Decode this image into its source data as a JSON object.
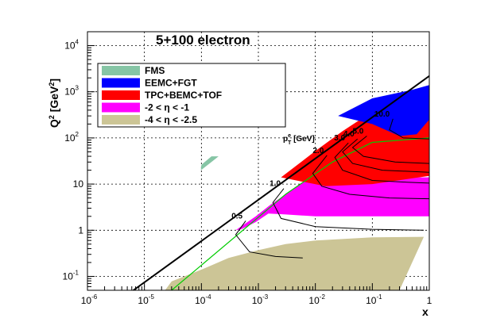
{
  "chart_data": {
    "type": "area",
    "title": "5+100 electron",
    "xlabel": "x",
    "ylabel": "Q2 [GeV2]",
    "x_scale": "log",
    "y_scale": "log",
    "xlim": [
      1e-06,
      1
    ],
    "ylim": [
      0.05,
      20000
    ],
    "grid": true,
    "x_ticks": [
      {
        "base": "10",
        "exp": "-6"
      },
      {
        "base": "10",
        "exp": "-5"
      },
      {
        "base": "10",
        "exp": "-4"
      },
      {
        "base": "10",
        "exp": "-3"
      },
      {
        "base": "10",
        "exp": "-2"
      },
      {
        "base": "10",
        "exp": "-1"
      },
      {
        "base": "1",
        "exp": ""
      }
    ],
    "y_ticks": [
      {
        "base": "10",
        "exp": "-1"
      },
      {
        "base": "1",
        "exp": ""
      },
      {
        "base": "10",
        "exp": ""
      },
      {
        "base": "10",
        "exp": "2"
      },
      {
        "base": "10",
        "exp": "3"
      },
      {
        "base": "10",
        "exp": "4"
      }
    ],
    "legend_position": "top-left",
    "series": [
      {
        "name": "FMS",
        "color": "#86c5a5",
        "polygon": [
          [
            9.8e-05,
            20
          ],
          [
            0.00015,
            30
          ],
          [
            0.0002,
            40
          ],
          [
            0.00015,
            40
          ],
          [
            0.0001,
            26
          ]
        ]
      },
      {
        "name": "EEMC+FGT",
        "color": "#0000ff",
        "polygon": [
          [
            0.025,
            300
          ],
          [
            0.1,
            720
          ],
          [
            0.5,
            1100
          ],
          [
            1,
            1400
          ],
          [
            1,
            250
          ],
          [
            0.6,
            120
          ],
          [
            0.3,
            110
          ],
          [
            0.1,
            200
          ]
        ]
      },
      {
        "name": "TPC+BEMC+TOF",
        "color": "#ff0000",
        "polygon": [
          [
            0.0025,
            14
          ],
          [
            0.01,
            52
          ],
          [
            0.03,
            140
          ],
          [
            0.1,
            370
          ],
          [
            0.5,
            550
          ],
          [
            1,
            580
          ],
          [
            1,
            15
          ],
          [
            0.1,
            10
          ],
          [
            0.015,
            9
          ]
        ]
      },
      {
        "name": "-2 < η < -1",
        "color": "#ff00ff",
        "polygon": [
          [
            0.0004,
            1.0
          ],
          [
            0.0009,
            2.0
          ],
          [
            0.0016,
            3.5
          ],
          [
            0.003,
            6
          ],
          [
            0.006,
            11
          ],
          [
            0.01,
            14
          ],
          [
            0.03,
            14
          ],
          [
            0.1,
            14
          ],
          [
            0.5,
            14
          ],
          [
            1,
            14
          ],
          [
            1,
            2
          ],
          [
            0.1,
            2
          ],
          [
            0.01,
            2
          ],
          [
            0.003,
            2.2
          ],
          [
            0.0015,
            2.3
          ],
          [
            0.0009,
            1.5
          ],
          [
            0.0005,
            1.05
          ]
        ]
      },
      {
        "name": "-4 < η < -2.5",
        "color": "#ccc596",
        "polygon": [
          [
            2.3e-05,
            0.05
          ],
          [
            3e-05,
            0.078
          ],
          [
            0.0001,
            0.14
          ],
          [
            0.0003,
            0.25
          ],
          [
            0.001,
            0.37
          ],
          [
            0.003,
            0.5
          ],
          [
            0.01,
            0.6
          ],
          [
            0.1,
            0.7
          ],
          [
            0.8,
            0.72
          ],
          [
            0.3,
            0.05
          ]
        ]
      }
    ],
    "kinematic_limit": {
      "color": "#000000",
      "points": [
        [
          1e-06,
          0.0095
        ],
        [
          1,
          2200
        ]
      ]
    },
    "y_inelasticity_line": {
      "color": "#00cc00",
      "points": [
        [
          3e-05,
          0.05
        ],
        [
          0.003,
          6
        ],
        [
          0.02,
          30
        ],
        [
          0.1,
          80
        ],
        [
          1,
          100
        ]
      ]
    },
    "pt_axis_label": {
      "base": "p",
      "sup": "e",
      "sub": "T",
      "unit": " [GeV]"
    },
    "pt_curves": [
      {
        "label": "0.5",
        "points": [
          [
            0.0006,
            1.6
          ],
          [
            0.0004,
            0.8
          ],
          [
            0.0007,
            0.34
          ],
          [
            0.002,
            0.27
          ],
          [
            0.006,
            0.25
          ]
        ]
      },
      {
        "label": "1.0",
        "points": [
          [
            0.0028,
            8
          ],
          [
            0.0018,
            4
          ],
          [
            0.0025,
            1.8
          ],
          [
            0.01,
            1.2
          ],
          [
            0.1,
            1.05
          ],
          [
            0.8,
            1.0
          ]
        ]
      },
      {
        "label": "2.0",
        "points": [
          [
            0.016,
            42
          ],
          [
            0.009,
            17
          ],
          [
            0.013,
            9
          ],
          [
            0.04,
            6
          ],
          [
            0.2,
            5
          ],
          [
            1,
            4.8
          ]
        ]
      },
      {
        "label": "3.0",
        "points": [
          [
            0.038,
            78
          ],
          [
            0.022,
            38
          ],
          [
            0.03,
            20
          ],
          [
            0.1,
            12
          ],
          [
            0.4,
            11
          ],
          [
            1,
            10.5
          ]
        ]
      },
      {
        "label": "4.0",
        "points": [
          [
            0.055,
            95
          ],
          [
            0.03,
            50
          ],
          [
            0.045,
            28
          ],
          [
            0.15,
            20
          ],
          [
            1,
            18
          ]
        ]
      },
      {
        "label": "5.0",
        "points": [
          [
            0.08,
            110
          ],
          [
            0.045,
            62
          ],
          [
            0.07,
            40
          ],
          [
            0.25,
            30
          ],
          [
            1,
            28
          ]
        ]
      },
      {
        "label": "10.0",
        "points": [
          [
            0.23,
            260
          ],
          [
            0.2,
            150
          ],
          [
            0.35,
            100
          ],
          [
            1,
            95
          ]
        ]
      }
    ]
  }
}
